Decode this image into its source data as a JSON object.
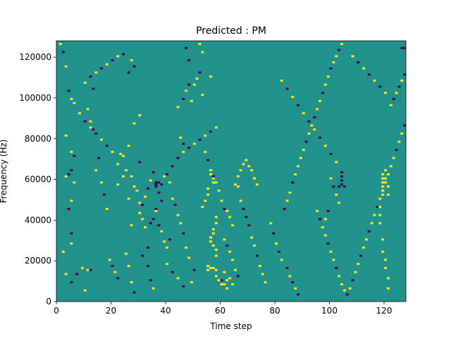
{
  "chart_data": {
    "type": "heatmap",
    "title": "Predicted : PM",
    "xlabel": "Time step",
    "ylabel": "Frequency (Hz)",
    "xlim": [
      0,
      128
    ],
    "ylim": [
      0,
      128000
    ],
    "x_ticks": [
      0,
      20,
      40,
      60,
      80,
      100,
      120
    ],
    "y_ticks": [
      0,
      20000,
      40000,
      60000,
      80000,
      100000,
      120000
    ],
    "n_time_steps": 128,
    "n_freq_bins": 128,
    "value_levels": [
      -1,
      0,
      1
    ],
    "colormap": {
      "-1": "#440154",
      "0": "#21918c",
      "1": "#fde725"
    },
    "background_value": 0,
    "nonzero_cells": [
      [
        1,
        126,
        1
      ],
      [
        2,
        122,
        -1
      ],
      [
        3,
        115,
        1
      ],
      [
        4,
        103,
        -1
      ],
      [
        5,
        99,
        1
      ],
      [
        6,
        97,
        1
      ],
      [
        3,
        81,
        1
      ],
      [
        5,
        73,
        1
      ],
      [
        6,
        71,
        -1
      ],
      [
        4,
        62,
        -1
      ],
      [
        5,
        64,
        -1
      ],
      [
        3,
        61,
        1
      ],
      [
        6,
        58,
        1
      ],
      [
        5,
        49,
        1
      ],
      [
        4,
        45,
        -1
      ],
      [
        5,
        33,
        -1
      ],
      [
        5,
        28,
        1
      ],
      [
        2,
        24,
        1
      ],
      [
        3,
        13,
        1
      ],
      [
        5,
        9,
        -1
      ],
      [
        7,
        13,
        -1
      ],
      [
        9,
        16,
        1
      ],
      [
        10,
        5,
        1
      ],
      [
        11,
        15,
        1
      ],
      [
        12,
        15,
        -1
      ],
      [
        13,
        104,
        -1
      ],
      [
        11,
        94,
        1
      ],
      [
        12,
        88,
        1
      ],
      [
        13,
        84,
        -1
      ],
      [
        14,
        64,
        1
      ],
      [
        15,
        70,
        -1
      ],
      [
        16,
        58,
        1
      ],
      [
        17,
        52,
        -1
      ],
      [
        18,
        45,
        1
      ],
      [
        19,
        20,
        1
      ],
      [
        20,
        17,
        -1
      ],
      [
        21,
        14,
        1
      ],
      [
        22,
        11,
        -1
      ],
      [
        23,
        72,
        1
      ],
      [
        24,
        71,
        1
      ],
      [
        22,
        67,
        1
      ],
      [
        24,
        61,
        1
      ],
      [
        22,
        57,
        1
      ],
      [
        25,
        64,
        1
      ],
      [
        26,
        50,
        1
      ],
      [
        27,
        37,
        1
      ],
      [
        25,
        23,
        1
      ],
      [
        26,
        17,
        1
      ],
      [
        27,
        9,
        1
      ],
      [
        28,
        4,
        -1
      ],
      [
        27,
        118,
        1
      ],
      [
        26,
        112,
        -1
      ],
      [
        28,
        115,
        -1
      ],
      [
        30,
        91,
        1
      ],
      [
        28,
        87,
        1
      ],
      [
        26,
        76,
        1
      ],
      [
        30,
        68,
        -1
      ],
      [
        27,
        61,
        1
      ],
      [
        28,
        56,
        1
      ],
      [
        29,
        54,
        1
      ],
      [
        30,
        48,
        1
      ],
      [
        31,
        40,
        1
      ],
      [
        32,
        36,
        1
      ],
      [
        33,
        26,
        -1
      ],
      [
        31,
        22,
        -1
      ],
      [
        33,
        17,
        -1
      ],
      [
        34,
        10,
        -1
      ],
      [
        35,
        6,
        1
      ],
      [
        36,
        56,
        -1
      ],
      [
        37,
        53,
        -1
      ],
      [
        38,
        49,
        -1
      ],
      [
        36,
        44,
        1
      ],
      [
        37,
        37,
        -1
      ],
      [
        38,
        34,
        1
      ],
      [
        39,
        29,
        1
      ],
      [
        40,
        26,
        1
      ],
      [
        41,
        30,
        -1
      ],
      [
        39,
        61,
        1
      ],
      [
        41,
        58,
        1
      ],
      [
        42,
        50,
        1
      ],
      [
        43,
        47,
        -1
      ],
      [
        44,
        42,
        1
      ],
      [
        45,
        38,
        1
      ],
      [
        46,
        33,
        -1
      ],
      [
        47,
        26,
        1
      ],
      [
        48,
        21,
        1
      ],
      [
        50,
        15,
        -1
      ],
      [
        49,
        9,
        1
      ],
      [
        45,
        80,
        1
      ],
      [
        46,
        77,
        -1
      ],
      [
        44,
        95,
        1
      ],
      [
        46,
        99,
        -1
      ],
      [
        47,
        103,
        1
      ],
      [
        48,
        106,
        -1
      ],
      [
        49,
        98,
        1
      ],
      [
        50,
        106,
        1
      ],
      [
        51,
        109,
        1
      ],
      [
        52,
        112,
        -1
      ],
      [
        53,
        101,
        1
      ],
      [
        47,
        124,
        -1
      ],
      [
        48,
        118,
        -1
      ],
      [
        52,
        126,
        1
      ],
      [
        53,
        122,
        1
      ],
      [
        56,
        110,
        1
      ],
      [
        54,
        73,
        1
      ],
      [
        55,
        69,
        -1
      ],
      [
        56,
        64,
        -1
      ],
      [
        57,
        61,
        -1
      ],
      [
        58,
        58,
        1
      ],
      [
        59,
        54,
        1
      ],
      [
        60,
        49,
        1
      ],
      [
        61,
        45,
        -1
      ],
      [
        62,
        44,
        1
      ],
      [
        63,
        41,
        1
      ],
      [
        64,
        37,
        1
      ],
      [
        61,
        30,
        1
      ],
      [
        62,
        27,
        -1
      ],
      [
        63,
        24,
        1
      ],
      [
        64,
        20,
        1
      ],
      [
        65,
        15,
        1
      ],
      [
        66,
        12,
        -1
      ],
      [
        64,
        8,
        1
      ],
      [
        62,
        6,
        1
      ],
      [
        60,
        10,
        -1
      ],
      [
        61,
        14,
        1
      ],
      [
        66,
        56,
        1
      ],
      [
        67,
        49,
        1
      ],
      [
        68,
        45,
        -1
      ],
      [
        69,
        41,
        -1
      ],
      [
        70,
        37,
        -1
      ],
      [
        71,
        31,
        1
      ],
      [
        72,
        27,
        1
      ],
      [
        73,
        22,
        -1
      ],
      [
        74,
        17,
        1
      ],
      [
        75,
        13,
        1
      ],
      [
        76,
        9,
        1
      ],
      [
        78,
        38,
        1
      ],
      [
        79,
        33,
        -1
      ],
      [
        80,
        28,
        1
      ],
      [
        81,
        24,
        -1
      ],
      [
        82,
        20,
        1
      ],
      [
        84,
        16,
        -1
      ],
      [
        85,
        12,
        1
      ],
      [
        86,
        9,
        -1
      ],
      [
        87,
        6,
        1
      ],
      [
        88,
        3,
        -1
      ],
      [
        83,
        45,
        -1
      ],
      [
        84,
        49,
        1
      ],
      [
        85,
        53,
        1
      ],
      [
        86,
        58,
        -1
      ],
      [
        87,
        62,
        1
      ],
      [
        88,
        66,
        1
      ],
      [
        89,
        70,
        1
      ],
      [
        90,
        74,
        1
      ],
      [
        91,
        78,
        -1
      ],
      [
        92,
        82,
        1
      ],
      [
        93,
        86,
        1
      ],
      [
        94,
        90,
        -1
      ],
      [
        95,
        94,
        1
      ],
      [
        96,
        98,
        1
      ],
      [
        97,
        102,
        -1
      ],
      [
        98,
        106,
        1
      ],
      [
        99,
        110,
        1
      ],
      [
        100,
        114,
        -1
      ],
      [
        101,
        117,
        1
      ],
      [
        102,
        120,
        1
      ],
      [
        103,
        123,
        -1
      ],
      [
        104,
        126,
        1
      ],
      [
        95,
        44,
        1
      ],
      [
        96,
        40,
        -1
      ],
      [
        97,
        36,
        1
      ],
      [
        98,
        32,
        1
      ],
      [
        99,
        28,
        -1
      ],
      [
        100,
        24,
        1
      ],
      [
        101,
        20,
        1
      ],
      [
        102,
        16,
        -1
      ],
      [
        103,
        12,
        1
      ],
      [
        104,
        8,
        1
      ],
      [
        105,
        5,
        1
      ],
      [
        106,
        3,
        -1
      ],
      [
        107,
        6,
        1
      ],
      [
        108,
        10,
        -1
      ],
      [
        109,
        14,
        1
      ],
      [
        110,
        18,
        1
      ],
      [
        111,
        22,
        -1
      ],
      [
        112,
        26,
        1
      ],
      [
        113,
        30,
        1
      ],
      [
        114,
        34,
        -1
      ],
      [
        115,
        38,
        1
      ],
      [
        116,
        42,
        1
      ],
      [
        117,
        46,
        -1
      ],
      [
        118,
        50,
        1
      ],
      [
        119,
        54,
        1
      ],
      [
        120,
        58,
        1
      ],
      [
        121,
        62,
        1
      ],
      [
        122,
        66,
        1
      ],
      [
        123,
        70,
        1
      ],
      [
        124,
        74,
        -1
      ],
      [
        125,
        78,
        1
      ],
      [
        126,
        82,
        1
      ],
      [
        127,
        86,
        -1
      ],
      [
        119,
        62,
        1
      ],
      [
        119,
        60,
        1
      ],
      [
        119,
        58,
        1
      ],
      [
        119,
        56,
        1
      ],
      [
        119,
        54,
        1
      ],
      [
        119,
        52,
        1
      ],
      [
        120,
        60,
        1
      ],
      [
        120,
        64,
        1
      ],
      [
        121,
        56,
        1
      ],
      [
        121,
        52,
        1
      ],
      [
        118,
        46,
        1
      ],
      [
        118,
        42,
        1
      ],
      [
        118,
        38,
        1
      ],
      [
        119,
        30,
        1
      ],
      [
        119,
        24,
        1
      ],
      [
        120,
        20,
        1
      ],
      [
        120,
        16,
        1
      ],
      [
        121,
        11,
        1
      ],
      [
        121,
        6,
        1
      ],
      [
        122,
        96,
        1
      ],
      [
        123,
        99,
        -1
      ],
      [
        124,
        102,
        1
      ],
      [
        125,
        105,
        -1
      ],
      [
        126,
        108,
        1
      ],
      [
        127,
        111,
        -1
      ],
      [
        127,
        124,
        -1
      ],
      [
        126,
        124,
        -1
      ],
      [
        104,
        57,
        -1
      ],
      [
        104,
        59,
        -1
      ],
      [
        104,
        61,
        -1
      ],
      [
        104,
        63,
        -1
      ],
      [
        103,
        56,
        -1
      ],
      [
        105,
        56,
        -1
      ],
      [
        36,
        57,
        -1
      ],
      [
        36,
        58,
        -1
      ],
      [
        37,
        58,
        -1
      ],
      [
        38,
        57,
        -1
      ],
      [
        36,
        45,
        -1
      ],
      [
        35,
        40,
        -1
      ],
      [
        34,
        38,
        -1
      ],
      [
        56,
        16,
        1
      ],
      [
        55,
        15,
        1
      ],
      [
        55,
        17,
        1
      ],
      [
        57,
        16,
        1
      ],
      [
        58,
        15,
        1
      ],
      [
        58,
        12,
        1
      ],
      [
        59,
        10,
        1
      ],
      [
        60,
        8,
        1
      ],
      [
        61,
        8,
        1
      ],
      [
        62,
        10,
        1
      ],
      [
        63,
        11,
        1
      ],
      [
        58,
        41,
        1
      ],
      [
        58,
        38,
        1
      ],
      [
        57,
        35,
        1
      ],
      [
        57,
        33,
        1
      ],
      [
        56,
        31,
        1
      ],
      [
        56,
        29,
        1
      ],
      [
        57,
        27,
        1
      ],
      [
        58,
        25,
        1
      ],
      [
        58,
        22,
        1
      ],
      [
        56,
        62,
        1
      ],
      [
        56,
        64,
        1
      ],
      [
        57,
        60,
        1
      ],
      [
        57,
        58,
        1
      ],
      [
        55,
        55,
        1
      ],
      [
        55,
        52,
        1
      ],
      [
        54,
        49,
        1
      ],
      [
        53,
        46,
        1
      ],
      [
        65,
        57,
        1
      ],
      [
        66,
        61,
        1
      ],
      [
        67,
        64,
        1
      ],
      [
        68,
        67,
        1
      ],
      [
        69,
        69,
        1
      ],
      [
        70,
        66,
        1
      ],
      [
        71,
        64,
        1
      ],
      [
        72,
        60,
        1
      ],
      [
        73,
        57,
        1
      ],
      [
        40,
        62,
        -1
      ],
      [
        42,
        66,
        -1
      ],
      [
        44,
        70,
        -1
      ],
      [
        46,
        73,
        1
      ],
      [
        48,
        75,
        -1
      ],
      [
        50,
        77,
        1
      ],
      [
        52,
        79,
        -1
      ],
      [
        54,
        81,
        1
      ],
      [
        56,
        83,
        -1
      ],
      [
        58,
        85,
        1
      ],
      [
        82,
        108,
        1
      ],
      [
        84,
        104,
        -1
      ],
      [
        86,
        100,
        1
      ],
      [
        88,
        96,
        -1
      ],
      [
        90,
        92,
        1
      ],
      [
        92,
        88,
        -1
      ],
      [
        94,
        84,
        1
      ],
      [
        96,
        80,
        -1
      ],
      [
        98,
        76,
        1
      ],
      [
        100,
        72,
        -1
      ],
      [
        102,
        68,
        1
      ],
      [
        100,
        60,
        1
      ],
      [
        101,
        56,
        -1
      ],
      [
        102,
        52,
        1
      ],
      [
        103,
        48,
        1
      ],
      [
        99,
        44,
        -1
      ],
      [
        98,
        40,
        1
      ],
      [
        97,
        36,
        1
      ],
      [
        108,
        120,
        1
      ],
      [
        110,
        117,
        -1
      ],
      [
        112,
        114,
        1
      ],
      [
        114,
        111,
        -1
      ],
      [
        116,
        108,
        1
      ],
      [
        118,
        105,
        -1
      ],
      [
        120,
        102,
        1
      ],
      [
        10,
        107,
        1
      ],
      [
        12,
        110,
        -1
      ],
      [
        14,
        112,
        1
      ],
      [
        16,
        114,
        -1
      ],
      [
        18,
        116,
        1
      ],
      [
        20,
        118,
        -1
      ],
      [
        22,
        120,
        1
      ],
      [
        24,
        121,
        -1
      ],
      [
        8,
        92,
        1
      ],
      [
        10,
        88,
        -1
      ],
      [
        12,
        85,
        1
      ],
      [
        14,
        82,
        -1
      ],
      [
        16,
        79,
        1
      ],
      [
        18,
        76,
        -1
      ],
      [
        20,
        73,
        1
      ],
      [
        30,
        43,
        1
      ],
      [
        31,
        47,
        -1
      ],
      [
        32,
        51,
        1
      ],
      [
        33,
        55,
        -1
      ],
      [
        34,
        59,
        1
      ],
      [
        35,
        63,
        -1
      ],
      [
        40,
        18,
        1
      ],
      [
        42,
        14,
        -1
      ],
      [
        44,
        11,
        1
      ],
      [
        46,
        7,
        -1
      ]
    ]
  }
}
